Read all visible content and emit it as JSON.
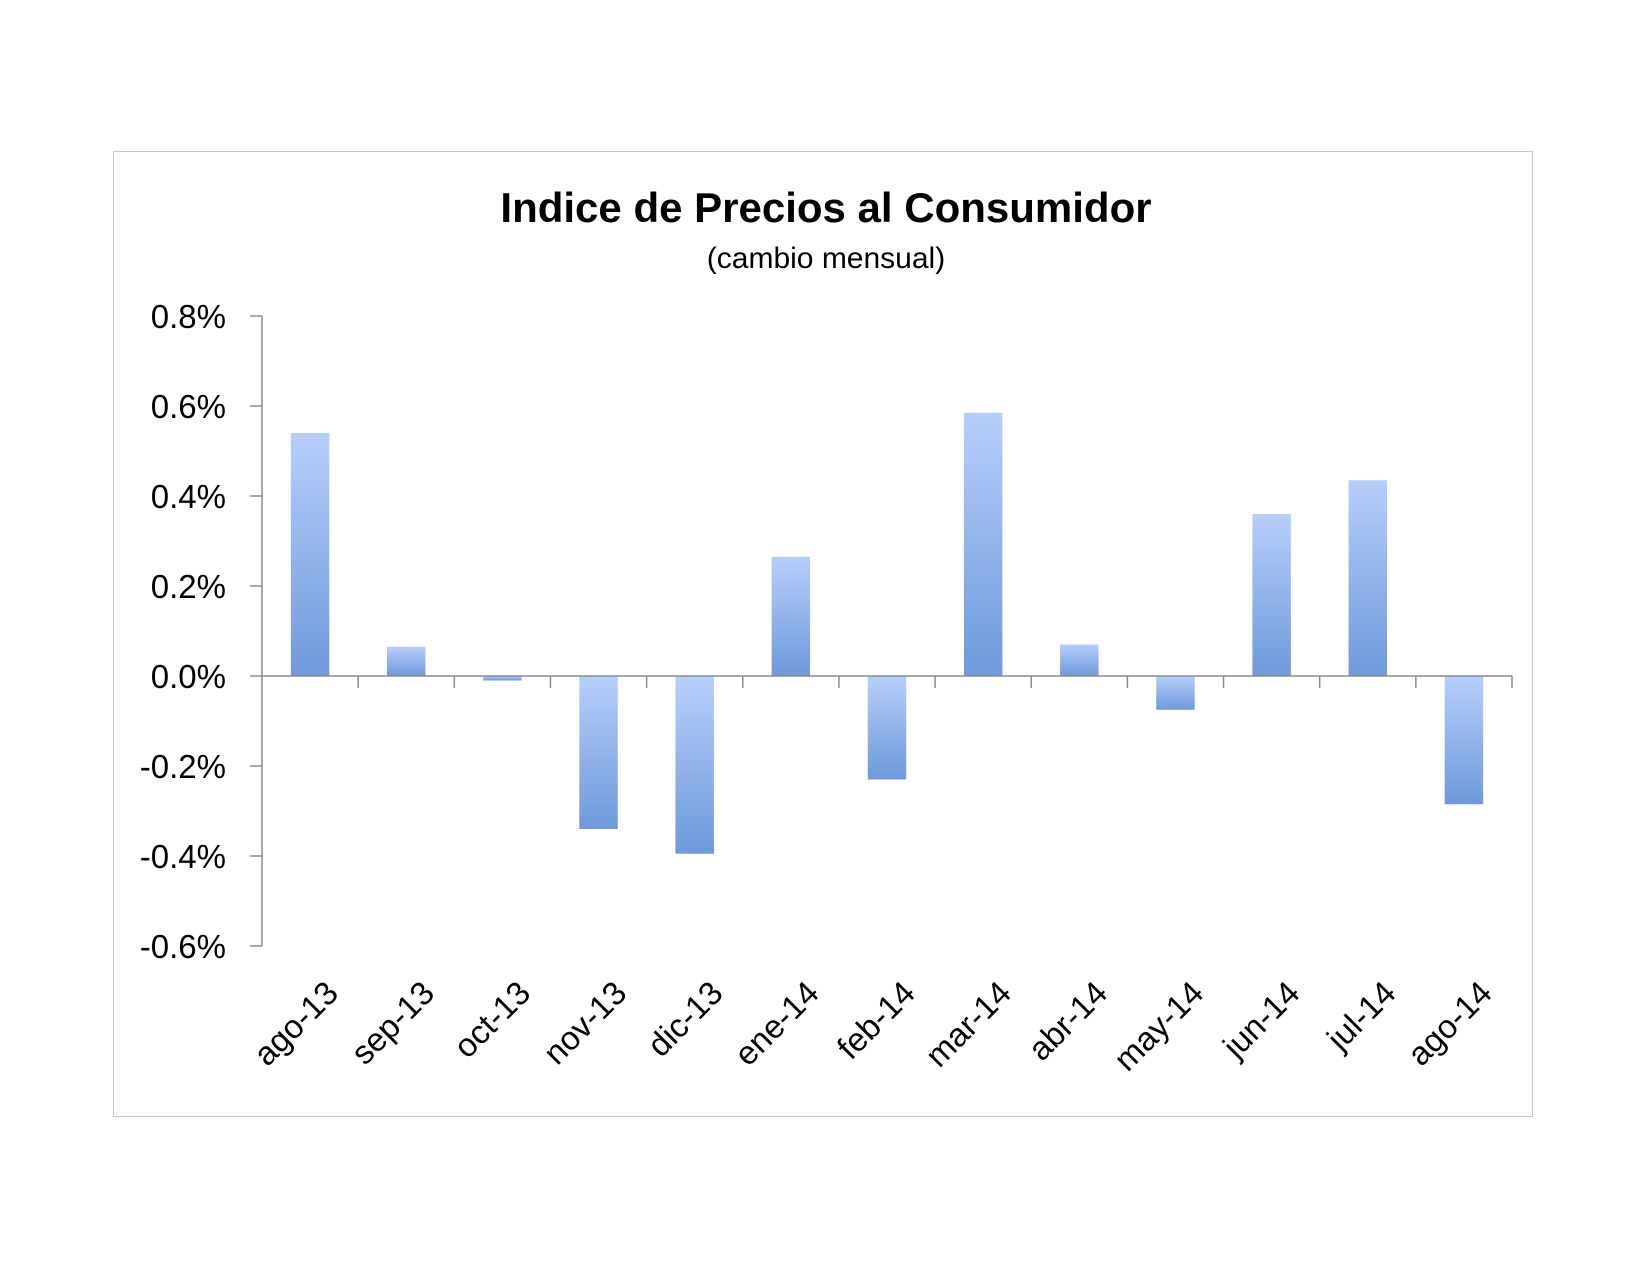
{
  "chart_data": {
    "type": "bar",
    "title": "Indice de Precios al Consumidor",
    "subtitle": "(cambio mensual)",
    "xlabel": "",
    "ylabel": "",
    "categories": [
      "ago-13",
      "sep-13",
      "oct-13",
      "nov-13",
      "dic-13",
      "ene-14",
      "feb-14",
      "mar-14",
      "abr-14",
      "may-14",
      "jun-14",
      "jul-14",
      "ago-14"
    ],
    "values": [
      0.54,
      0.065,
      -0.01,
      -0.34,
      -0.395,
      0.265,
      -0.23,
      0.585,
      0.07,
      -0.075,
      0.36,
      0.435,
      -0.285
    ],
    "ylim": [
      -0.6,
      0.8
    ],
    "yticks": [
      0.8,
      0.6,
      0.4,
      0.2,
      0.0,
      -0.2,
      -0.4,
      -0.6
    ],
    "ytick_labels": [
      "0.8%",
      "0.6%",
      "0.4%",
      "0.2%",
      "0.0%",
      "-0.2%",
      "-0.4%",
      "-0.6%"
    ],
    "units": "%",
    "grid": false,
    "legend": "none",
    "colors": {
      "bar_light": "#b7cefb",
      "bar_dark": "#6e99db",
      "axis": "#8c8c8c",
      "frame": "#c8c8c8"
    }
  }
}
